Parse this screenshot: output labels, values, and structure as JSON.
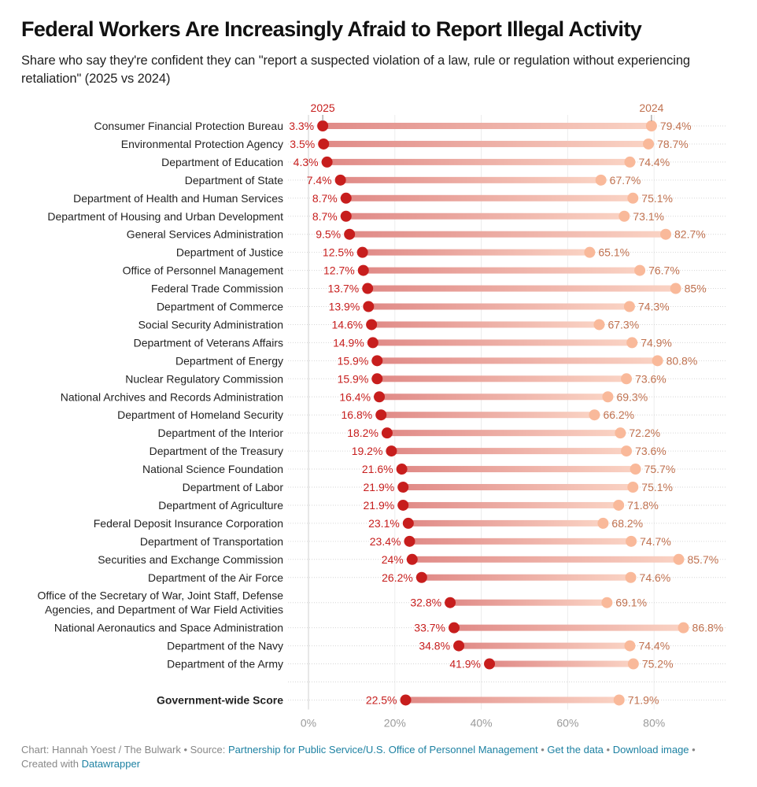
{
  "header": {
    "title": "Federal Workers Are Increasingly Afraid to Report Illegal Activity",
    "subtitle": "Share who say they're confident they can \"report a suspected violation of a law, rule or regulation without experiencing retaliation\" (2025 vs 2024)"
  },
  "colors": {
    "y2025": "#c71e1d",
    "y2024": "#f9b99a",
    "label2025": "#c71e1d",
    "label2024": "#c0714f",
    "bar_start": "#e08a87",
    "bar_end": "#fad3c4",
    "link": "#1d81a2"
  },
  "chart_data": {
    "type": "range-dot",
    "title": "Federal Workers Are Increasingly Afraid to Report Illegal Activity",
    "xlabel": "",
    "ylabel": "",
    "x_ticks": [
      "0%",
      "20%",
      "40%",
      "60%",
      "80%"
    ],
    "x_tick_values": [
      0,
      20,
      40,
      60,
      80
    ],
    "xlim": [
      0,
      97
    ],
    "grid": true,
    "series_labels": [
      "2025",
      "2024"
    ],
    "categories": [
      "Consumer Financial Protection Bureau",
      "Environmental Protection Agency",
      "Department of Education",
      "Department of State",
      "Department of Health and Human Services",
      "Department of Housing and Urban Development",
      "General Services Administration",
      "Department of Justice",
      "Office of Personnel Management",
      "Federal Trade Commission",
      "Department of Commerce",
      "Social Security Administration",
      "Department of Veterans Affairs",
      "Department of Energy",
      "Nuclear Regulatory Commission",
      "National Archives and Records Administration",
      "Department of Homeland Security",
      "Department of the Interior",
      "Department of the Treasury",
      "National Science Foundation",
      "Department of Labor",
      "Department of Agriculture",
      "Federal Deposit Insurance Corporation",
      "Department of Transportation",
      "Securities and Exchange Commission",
      "Department of the Air Force",
      "Office of the Secretary of War, Joint Staff, Defense Agencies, and Department of War Field Activities",
      "National Aeronautics and Space Administration",
      "Department of the Navy",
      "Department of the Army",
      "",
      "Government-wide Score"
    ],
    "category_lines": [
      [
        "Consumer Financial Protection Bureau"
      ],
      [
        "Environmental Protection Agency"
      ],
      [
        "Department of Education"
      ],
      [
        "Department of State"
      ],
      [
        "Department of Health and Human Services"
      ],
      [
        "Department of Housing and Urban Development"
      ],
      [
        "General Services Administration"
      ],
      [
        "Department of Justice"
      ],
      [
        "Office of Personnel Management"
      ],
      [
        "Federal Trade Commission"
      ],
      [
        "Department of Commerce"
      ],
      [
        "Social Security Administration"
      ],
      [
        "Department of Veterans Affairs"
      ],
      [
        "Department of Energy"
      ],
      [
        "Nuclear Regulatory Commission"
      ],
      [
        "National Archives and Records Administration"
      ],
      [
        "Department of Homeland Security"
      ],
      [
        "Department of the Interior"
      ],
      [
        "Department of the Treasury"
      ],
      [
        "National Science Foundation"
      ],
      [
        "Department of Labor"
      ],
      [
        "Department of Agriculture"
      ],
      [
        "Federal Deposit Insurance Corporation"
      ],
      [
        "Department of Transportation"
      ],
      [
        "Securities and Exchange Commission"
      ],
      [
        "Department of the Air Force"
      ],
      [
        "Office of the Secretary of War, Joint Staff, Defense",
        "Agencies, and Department of War Field Activities"
      ],
      [
        "National Aeronautics and Space Administration"
      ],
      [
        "Department of the Navy"
      ],
      [
        "Department of the Army"
      ],
      [],
      [
        "Government-wide Score"
      ]
    ],
    "bold": [
      false,
      false,
      false,
      false,
      false,
      false,
      false,
      false,
      false,
      false,
      false,
      false,
      false,
      false,
      false,
      false,
      false,
      false,
      false,
      false,
      false,
      false,
      false,
      false,
      false,
      false,
      false,
      false,
      false,
      false,
      false,
      true
    ],
    "series": [
      {
        "name": "2025",
        "values": [
          3.3,
          3.5,
          4.3,
          7.4,
          8.7,
          8.7,
          9.5,
          12.5,
          12.7,
          13.7,
          13.9,
          14.6,
          14.9,
          15.9,
          15.9,
          16.4,
          16.8,
          18.2,
          19.2,
          21.6,
          21.9,
          21.9,
          23.1,
          23.4,
          24,
          26.2,
          32.8,
          33.7,
          34.8,
          41.9,
          null,
          22.5
        ],
        "labels": [
          "3.3%",
          "3.5%",
          "4.3%",
          "7.4%",
          "8.7%",
          "8.7%",
          "9.5%",
          "12.5%",
          "12.7%",
          "13.7%",
          "13.9%",
          "14.6%",
          "14.9%",
          "15.9%",
          "15.9%",
          "16.4%",
          "16.8%",
          "18.2%",
          "19.2%",
          "21.6%",
          "21.9%",
          "21.9%",
          "23.1%",
          "23.4%",
          "24%",
          "26.2%",
          "32.8%",
          "33.7%",
          "34.8%",
          "41.9%",
          null,
          "22.5%"
        ]
      },
      {
        "name": "2024",
        "values": [
          79.4,
          78.7,
          74.4,
          67.7,
          75.1,
          73.1,
          82.7,
          65.1,
          76.7,
          85,
          74.3,
          67.3,
          74.9,
          80.8,
          73.6,
          69.3,
          66.2,
          72.2,
          73.6,
          75.7,
          75.1,
          71.8,
          68.2,
          74.7,
          85.7,
          74.6,
          69.1,
          86.8,
          74.4,
          75.2,
          null,
          71.9
        ],
        "labels": [
          "79.4%",
          "78.7%",
          "74.4%",
          "67.7%",
          "75.1%",
          "73.1%",
          "82.7%",
          "65.1%",
          "76.7%",
          "85%",
          "74.3%",
          "67.3%",
          "74.9%",
          "80.8%",
          "73.6%",
          "69.3%",
          "66.2%",
          "72.2%",
          "73.6%",
          "75.7%",
          "75.1%",
          "71.8%",
          "68.2%",
          "74.7%",
          "85.7%",
          "74.6%",
          "69.1%",
          "86.8%",
          "74.4%",
          "75.2%",
          null,
          "71.9%"
        ]
      }
    ]
  },
  "footer": {
    "prefix": "Chart: Hannah Yoest / The Bulwark • Source: ",
    "source_link": "Partnership for Public Service/U.S. Office of Personnel Management",
    "sep1": " • ",
    "get_data": "Get the data",
    "sep2": " • ",
    "download": "Download image",
    "sep3": " • ",
    "created_with": "Created with ",
    "datawrapper": "Datawrapper"
  }
}
